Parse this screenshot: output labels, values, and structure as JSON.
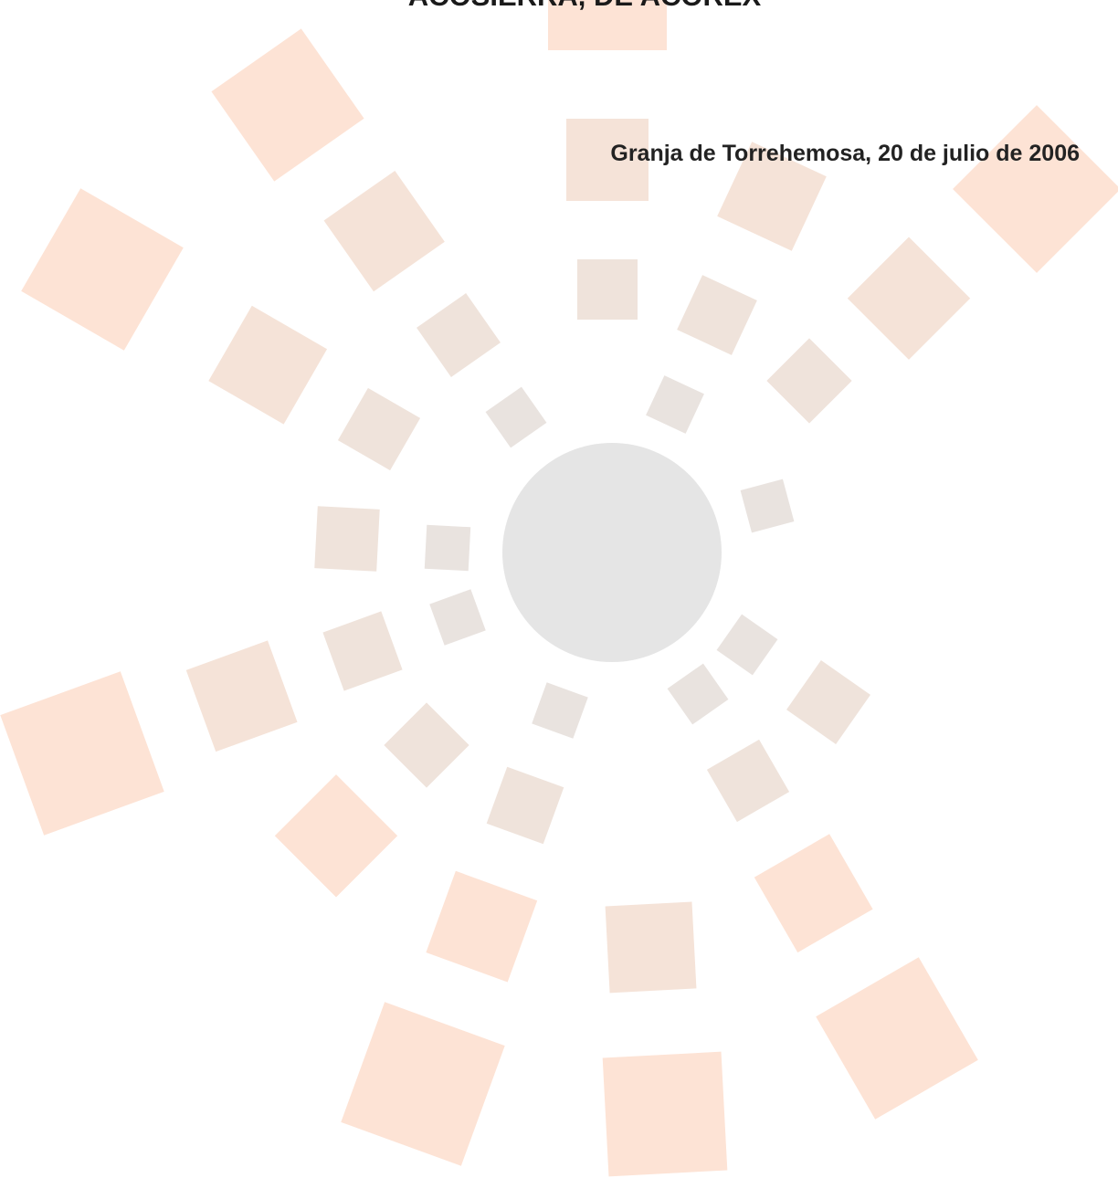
{
  "title": "ACOSIERRA, DE ACOREX",
  "place_date": "Granja de Torrehemosa, 20 de julio de 2006"
}
